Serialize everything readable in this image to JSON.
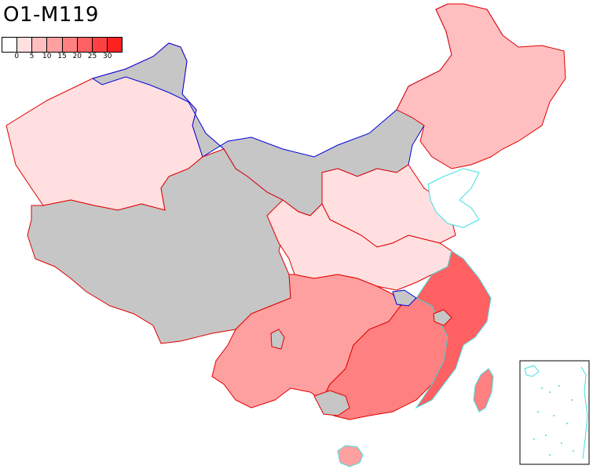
{
  "title": "O1-M119",
  "legend": {
    "colors": [
      "#ffffff",
      "#ffdfe0",
      "#ffbfc0",
      "#ffa0a0",
      "#ff8080",
      "#ff6062",
      "#ff4042",
      "#ff2020"
    ],
    "ticks": [
      "0",
      "5",
      "10",
      "15",
      "20",
      "25",
      "30"
    ]
  },
  "colors": {
    "no_data": "#c6c6c6",
    "border_red": "#e00000",
    "border_blue": "#0000e0",
    "coast": "#40e0e0"
  },
  "regions": [
    {
      "name": "Xinjiang west",
      "bin": 1
    },
    {
      "name": "Tibet",
      "bin": -1
    },
    {
      "name": "Inner Mongolia",
      "bin": -1
    },
    {
      "name": "Northeast",
      "bin": 2
    },
    {
      "name": "North China plain",
      "bin": 1
    },
    {
      "name": "Central China",
      "bin": 1
    },
    {
      "name": "Southwest",
      "bin": 3
    },
    {
      "name": "South",
      "bin": 4
    },
    {
      "name": "Southeast coast",
      "bin": 5
    },
    {
      "name": "Hainan",
      "bin": 3
    },
    {
      "name": "Taiwan",
      "bin": 4
    }
  ]
}
